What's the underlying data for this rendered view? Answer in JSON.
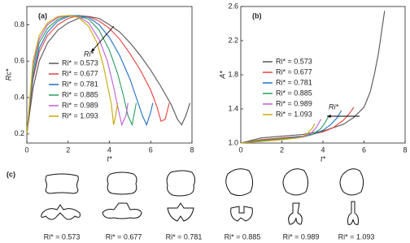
{
  "chart_data": [
    {
      "type": "line",
      "panel_label": "(a)",
      "x_label": "t*",
      "y_label": "Rc*",
      "annotation": "Ri*",
      "xlim": [
        0,
        8
      ],
      "xticks": [
        0,
        2,
        4,
        6,
        8
      ],
      "ylim": [
        0.15,
        0.9
      ],
      "yticks": [
        0.2,
        0.4,
        0.6,
        0.8
      ],
      "series": [
        {
          "name": "Ri* = 0.573",
          "color": "#555555",
          "x": [
            0,
            0.3,
            0.6,
            1,
            1.5,
            2,
            2.5,
            3,
            3.5,
            4,
            4.5,
            5,
            5.5,
            6,
            6.5,
            7,
            7.3,
            7.5,
            7.7,
            7.9
          ],
          "values": [
            0.2,
            0.45,
            0.6,
            0.7,
            0.77,
            0.81,
            0.835,
            0.845,
            0.835,
            0.8,
            0.76,
            0.7,
            0.63,
            0.55,
            0.46,
            0.36,
            0.28,
            0.25,
            0.3,
            0.37
          ]
        },
        {
          "name": "Ri* = 0.677",
          "color": "#e8403a",
          "x": [
            0,
            0.3,
            0.6,
            1,
            1.5,
            2,
            2.5,
            3,
            3.5,
            4,
            4.5,
            5,
            5.5,
            6,
            6.3,
            6.5,
            6.7,
            6.9
          ],
          "values": [
            0.2,
            0.5,
            0.65,
            0.74,
            0.8,
            0.835,
            0.85,
            0.845,
            0.82,
            0.78,
            0.72,
            0.64,
            0.55,
            0.44,
            0.35,
            0.27,
            0.28,
            0.37
          ]
        },
        {
          "name": "Ri* = 0.781",
          "color": "#1f6fc5",
          "x": [
            0,
            0.3,
            0.6,
            1,
            1.5,
            2,
            2.5,
            3,
            3.5,
            4,
            4.5,
            5,
            5.3,
            5.6,
            5.8,
            6,
            6.1
          ],
          "values": [
            0.2,
            0.52,
            0.67,
            0.76,
            0.82,
            0.845,
            0.85,
            0.84,
            0.8,
            0.73,
            0.63,
            0.5,
            0.4,
            0.3,
            0.25,
            0.32,
            0.37
          ]
        },
        {
          "name": "Ri* = 0.885",
          "color": "#2a9d5c",
          "x": [
            0,
            0.3,
            0.6,
            1,
            1.5,
            2,
            2.5,
            3,
            3.5,
            4,
            4.4,
            4.7,
            4.9,
            5.1,
            5.3
          ],
          "values": [
            0.2,
            0.55,
            0.7,
            0.78,
            0.83,
            0.85,
            0.85,
            0.83,
            0.77,
            0.66,
            0.53,
            0.4,
            0.3,
            0.25,
            0.37
          ]
        },
        {
          "name": "Ri* = 0.989",
          "color": "#c05cd8",
          "x": [
            0,
            0.3,
            0.6,
            1,
            1.5,
            2,
            2.5,
            3,
            3.5,
            3.9,
            4.2,
            4.4,
            4.6,
            4.8,
            4.9
          ],
          "values": [
            0.2,
            0.58,
            0.72,
            0.8,
            0.84,
            0.85,
            0.845,
            0.81,
            0.72,
            0.6,
            0.46,
            0.35,
            0.25,
            0.3,
            0.37
          ]
        },
        {
          "name": "Ri* = 1.093",
          "color": "#c9a800",
          "x": [
            0,
            0.3,
            0.6,
            1,
            1.5,
            2,
            2.5,
            3,
            3.4,
            3.7,
            3.9,
            4.1,
            4.2,
            4.3,
            4.4
          ],
          "values": [
            0.2,
            0.6,
            0.74,
            0.81,
            0.845,
            0.85,
            0.84,
            0.79,
            0.7,
            0.58,
            0.47,
            0.36,
            0.25,
            0.3,
            0.37
          ]
        }
      ]
    },
    {
      "type": "line",
      "panel_label": "(b)",
      "x_label": "t*",
      "y_label": "A*",
      "annotation": "Ri*",
      "xlim": [
        0,
        8
      ],
      "xticks": [
        0,
        2,
        4,
        6,
        8
      ],
      "ylim": [
        1,
        2.6
      ],
      "yticks": [
        {
          "value": 1,
          "label": "1.0"
        },
        1.4,
        1.8,
        2.2,
        2.6
      ],
      "series": [
        {
          "name": "Ri* = 0.573",
          "color": "#555555",
          "x": [
            0,
            1,
            2,
            3,
            4,
            5,
            5.5,
            6,
            6.3,
            6.5,
            6.7,
            6.85,
            7
          ],
          "values": [
            1,
            1.06,
            1.08,
            1.1,
            1.14,
            1.22,
            1.3,
            1.42,
            1.6,
            1.8,
            2.05,
            2.3,
            2.55
          ]
        },
        {
          "name": "Ri* = 0.677",
          "color": "#e8403a",
          "x": [
            0,
            1,
            2,
            3,
            4,
            4.5,
            5,
            5.3,
            5.5
          ],
          "values": [
            1,
            1.04,
            1.06,
            1.08,
            1.13,
            1.18,
            1.27,
            1.35,
            1.42
          ]
        },
        {
          "name": "Ri* = 0.781",
          "color": "#1f6fc5",
          "x": [
            0,
            1,
            2,
            3,
            3.5,
            4,
            4.4,
            4.7,
            4.9
          ],
          "values": [
            1,
            1.03,
            1.05,
            1.08,
            1.1,
            1.15,
            1.22,
            1.3,
            1.38
          ]
        },
        {
          "name": "Ri* = 0.885",
          "color": "#2a9d5c",
          "x": [
            0,
            1,
            2,
            3,
            3.5,
            3.9,
            4.1,
            4.3
          ],
          "values": [
            1,
            1.03,
            1.05,
            1.07,
            1.1,
            1.17,
            1.24,
            1.32
          ]
        },
        {
          "name": "Ri* = 0.989",
          "color": "#c05cd8",
          "x": [
            0,
            1,
            2,
            3,
            3.4,
            3.7,
            3.9
          ],
          "values": [
            1,
            1.02,
            1.04,
            1.07,
            1.11,
            1.19,
            1.28
          ]
        },
        {
          "name": "Ri* = 1.093",
          "color": "#c9a800",
          "x": [
            0,
            1,
            2,
            2.8,
            3.2,
            3.5,
            3.6
          ],
          "values": [
            1,
            1.02,
            1.04,
            1.06,
            1.1,
            1.18,
            1.23
          ]
        }
      ]
    }
  ],
  "panel_c": {
    "label": "(c)",
    "captions": [
      "Ri* = 0.573",
      "Ri* = 0.677",
      "Ri* = 0.781",
      "Ri* = 0.885",
      "Ri* = 0.989",
      "Ri* = 1.093"
    ]
  }
}
